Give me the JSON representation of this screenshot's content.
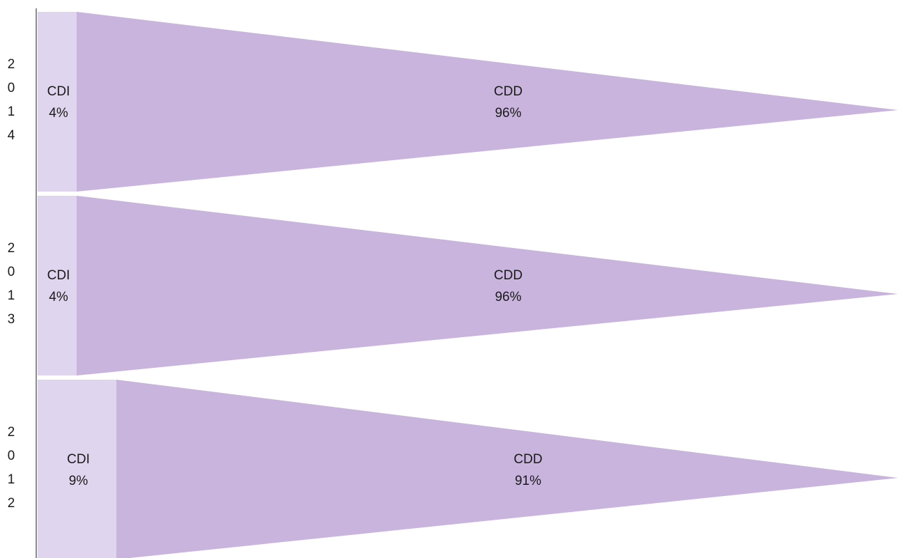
{
  "chart_data": {
    "type": "bar",
    "orientation": "horizontal",
    "stacked": true,
    "bar_shape": "pennant",
    "categories": [
      "2014",
      "2013",
      "2012"
    ],
    "series": [
      {
        "name": "CDI",
        "values": [
          4,
          4,
          9
        ],
        "labels": [
          "4%",
          "4%",
          "9%"
        ],
        "color": "#e0d5ee"
      },
      {
        "name": "CDD",
        "values": [
          96,
          96,
          91
        ],
        "labels": [
          "96%",
          "96%",
          "91%"
        ],
        "color": "#c8b4dc"
      }
    ],
    "xlim": [
      0,
      100
    ],
    "grid": false,
    "legend": "none",
    "axis_color": "#8c8c8c"
  }
}
